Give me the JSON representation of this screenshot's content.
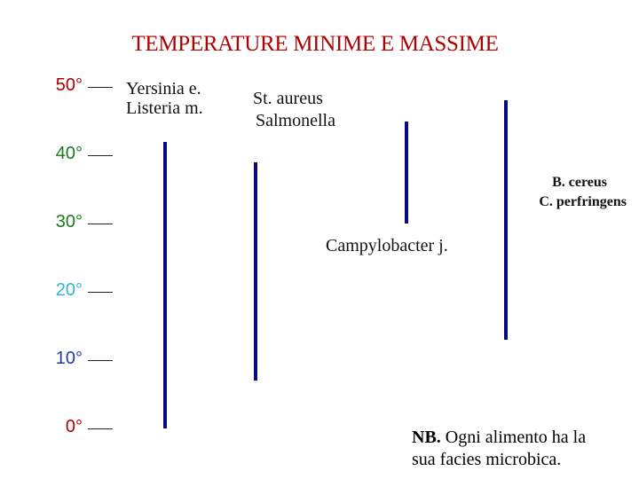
{
  "title": "TEMPERATURE MINIME E MASSIME",
  "axis_ticks": [
    {
      "label": "50°",
      "value": 50,
      "color": "#b00000"
    },
    {
      "label": "40°",
      "value": 40,
      "color": "#1a7a1a"
    },
    {
      "label": "30°",
      "value": 30,
      "color": "#1a7a1a"
    },
    {
      "label": "20°",
      "value": 20,
      "color": "#33b5d8"
    },
    {
      "label": "10°",
      "value": 10,
      "color": "#1f3fa0"
    },
    {
      "label": "0°",
      "value": 0,
      "color": "#b00000"
    }
  ],
  "organisms": [
    {
      "lines": [
        "Yersinia e.",
        "Listeria m."
      ],
      "min": 0,
      "max": 42
    },
    {
      "lines": [
        "St. aureus",
        "Salmonella"
      ],
      "min": 7,
      "max": 39
    },
    {
      "lines": [
        "Campylobacter j."
      ],
      "min": 30,
      "max": 45
    },
    {
      "lines": [
        "B. cereus",
        "C. perfringens"
      ],
      "min": 13,
      "max": 48
    }
  ],
  "note": {
    "bold": "NB.",
    "line1": " Ogni alimento ha la",
    "line2": "sua facies microbica."
  },
  "bar_color": "#0a0a80"
}
